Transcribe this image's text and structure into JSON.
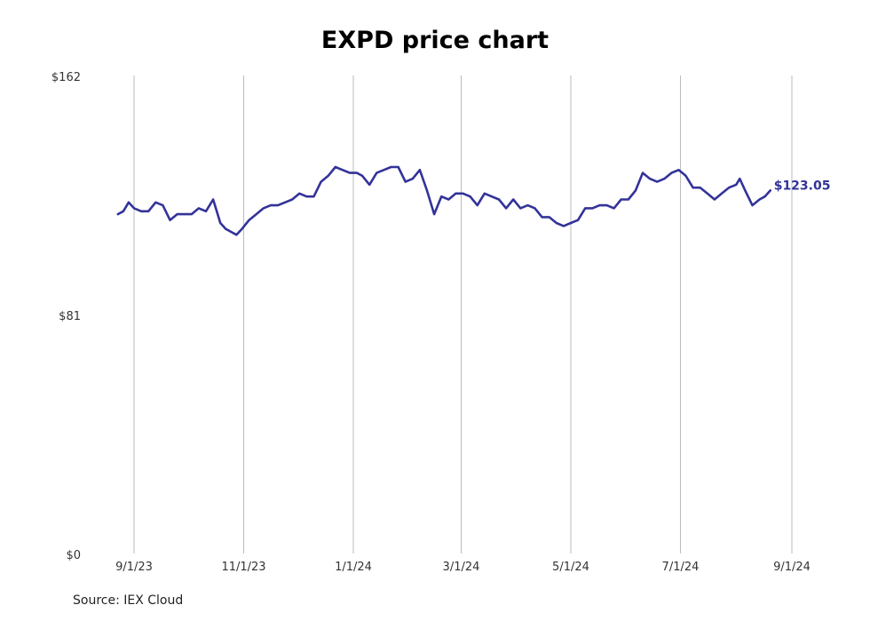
{
  "title": "EXPD price chart",
  "source": "Source: IEX Cloud",
  "colors": {
    "line": "#333399",
    "grid": "#bbbbbb"
  },
  "chart_data": {
    "type": "line",
    "title": "EXPD price chart",
    "ylim": [
      0,
      162
    ],
    "y_ticks": [
      "$0",
      "$81",
      "$162"
    ],
    "y_tick_values": [
      0,
      81,
      162
    ],
    "x_ticks": [
      "9/1/23",
      "11/1/23",
      "1/1/24",
      "3/1/24",
      "5/1/24",
      "7/1/24",
      "9/1/24"
    ],
    "x_tick_dates": [
      "2023-09-01",
      "2023-11-01",
      "2024-01-01",
      "2024-03-01",
      "2024-05-01",
      "2024-07-01",
      "2024-09-01"
    ],
    "grid": "vertical",
    "last_value_label": "$123.05",
    "series": [
      {
        "x": [
          "2023-08-23",
          "2023-08-26",
          "2023-08-29",
          "2023-09-01",
          "2023-09-05",
          "2023-09-09",
          "2023-09-13",
          "2023-09-17",
          "2023-09-21",
          "2023-09-25",
          "2023-09-29",
          "2023-10-03",
          "2023-10-07",
          "2023-10-11",
          "2023-10-15",
          "2023-10-19",
          "2023-10-22",
          "2023-10-25",
          "2023-10-28",
          "2023-10-31",
          "2023-11-04",
          "2023-11-08",
          "2023-11-12",
          "2023-11-16",
          "2023-11-20",
          "2023-11-24",
          "2023-11-28",
          "2023-12-02",
          "2023-12-06",
          "2023-12-10",
          "2023-12-14",
          "2023-12-18",
          "2023-12-22",
          "2023-12-26",
          "2023-12-30",
          "2024-01-03",
          "2024-01-06",
          "2024-01-10",
          "2024-01-14",
          "2024-01-18",
          "2024-01-22",
          "2024-01-26",
          "2024-01-30",
          "2024-02-03",
          "2024-02-07",
          "2024-02-11",
          "2024-02-15",
          "2024-02-19",
          "2024-02-23",
          "2024-02-27",
          "2024-03-02",
          "2024-03-06",
          "2024-03-10",
          "2024-03-14",
          "2024-03-18",
          "2024-03-22",
          "2024-03-26",
          "2024-03-30",
          "2024-04-03",
          "2024-04-07",
          "2024-04-11",
          "2024-04-15",
          "2024-04-19",
          "2024-04-23",
          "2024-04-27",
          "2024-05-01",
          "2024-05-05",
          "2024-05-09",
          "2024-05-13",
          "2024-05-17",
          "2024-05-21",
          "2024-05-25",
          "2024-05-29",
          "2024-06-02",
          "2024-06-06",
          "2024-06-10",
          "2024-06-14",
          "2024-06-18",
          "2024-06-22",
          "2024-06-26",
          "2024-06-30",
          "2024-07-04",
          "2024-07-08",
          "2024-07-12",
          "2024-07-16",
          "2024-07-20",
          "2024-07-24",
          "2024-07-28",
          "2024-08-01",
          "2024-08-03",
          "2024-08-06",
          "2024-08-10",
          "2024-08-14",
          "2024-08-17",
          "2024-08-20"
        ],
        "y": [
          115,
          116,
          119,
          117,
          116,
          116,
          119,
          118,
          113,
          115,
          115,
          115,
          117,
          116,
          120,
          112,
          110,
          109,
          108,
          110,
          113,
          115,
          117,
          118,
          118,
          119,
          120,
          122,
          121,
          121,
          126,
          128,
          131,
          130,
          129,
          129,
          128,
          125,
          129,
          130,
          131,
          131,
          126,
          127,
          130,
          123,
          115,
          121,
          120,
          122,
          122,
          121,
          118,
          122,
          121,
          120,
          117,
          120,
          117,
          118,
          117,
          114,
          114,
          112,
          111,
          112,
          113,
          117,
          117,
          118,
          118,
          117,
          120,
          120,
          123,
          129,
          127,
          126,
          127,
          129,
          130,
          128,
          124,
          124,
          122,
          120,
          122,
          124,
          125,
          127,
          123,
          118,
          120,
          121,
          123.05
        ]
      }
    ]
  }
}
